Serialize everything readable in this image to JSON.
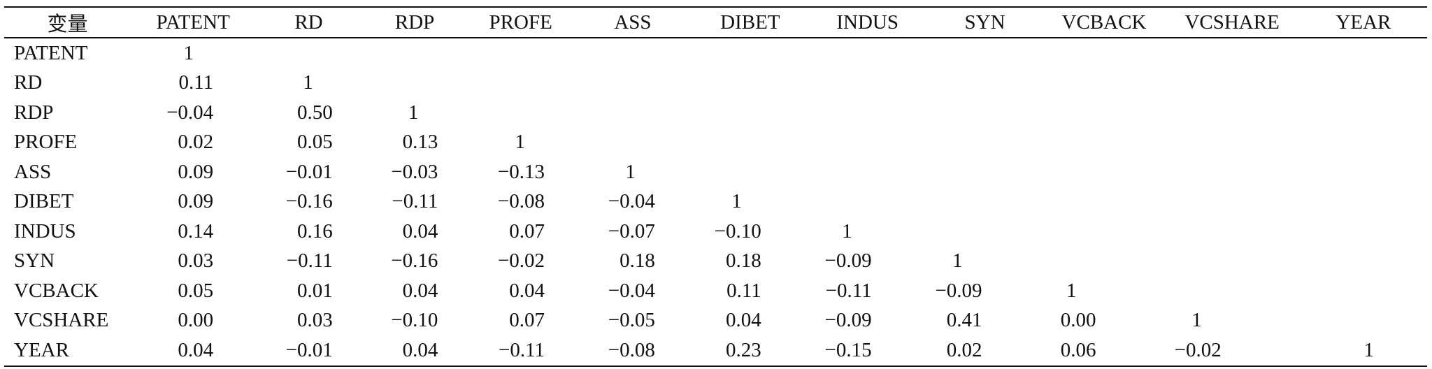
{
  "table": {
    "header_label": "变量",
    "columns": [
      "PATENT",
      "RD",
      "RDP",
      "PROFE",
      "ASS",
      "DIBET",
      "INDUS",
      "SYN",
      "VCBACK",
      "VCSHARE",
      "YEAR"
    ],
    "rows": [
      {
        "label": "PATENT",
        "values": [
          "1"
        ]
      },
      {
        "label": "RD",
        "values": [
          "0.11",
          "1"
        ]
      },
      {
        "label": "RDP",
        "values": [
          "−0.04",
          "0.50",
          "1"
        ]
      },
      {
        "label": "PROFE",
        "values": [
          "0.02",
          "0.05",
          "0.13",
          "1"
        ]
      },
      {
        "label": "ASS",
        "values": [
          "0.09",
          "−0.01",
          "−0.03",
          "−0.13",
          "1"
        ]
      },
      {
        "label": "DIBET",
        "values": [
          "0.09",
          "−0.16",
          "−0.11",
          "−0.08",
          "−0.04",
          "1"
        ]
      },
      {
        "label": "INDUS",
        "values": [
          "0.14",
          "0.16",
          "0.04",
          "0.07",
          "−0.07",
          "−0.10",
          "1"
        ]
      },
      {
        "label": "SYN",
        "values": [
          "0.03",
          "−0.11",
          "−0.16",
          "−0.02",
          "0.18",
          "0.18",
          "−0.09",
          "1"
        ]
      },
      {
        "label": "VCBACK",
        "values": [
          "0.05",
          "0.01",
          "0.04",
          "0.04",
          "−0.04",
          "0.11",
          "−0.11",
          "−0.09",
          "1"
        ]
      },
      {
        "label": "VCSHARE",
        "values": [
          "0.00",
          "0.03",
          "−0.10",
          "0.07",
          "−0.05",
          "0.04",
          "−0.09",
          "0.41",
          "0.00",
          "1"
        ]
      },
      {
        "label": "YEAR",
        "values": [
          "0.04",
          "−0.01",
          "0.04",
          "−0.11",
          "−0.08",
          "0.23",
          "−0.15",
          "0.02",
          "0.06",
          "−0.02",
          "1"
        ]
      }
    ]
  }
}
